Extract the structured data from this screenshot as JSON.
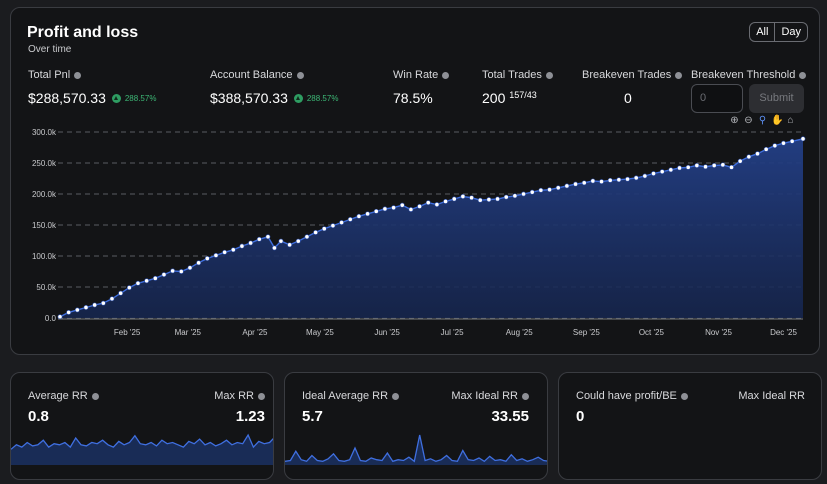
{
  "header": {
    "title": "Profit and loss",
    "subtitle": "Over time"
  },
  "range_toggle": {
    "all": "All",
    "day": "Day"
  },
  "stats": {
    "total_pnl": {
      "label": "Total Pnl",
      "value": "$288,570.33",
      "change": "288.57%"
    },
    "account_balance": {
      "label": "Account Balance",
      "value": "$388,570.33",
      "change": "288.57%"
    },
    "win_rate": {
      "label": "Win Rate",
      "value": "78.5%"
    },
    "total_trades": {
      "label": "Total Trades",
      "value": "200",
      "detail": "157/43"
    },
    "breakeven_trades": {
      "label": "Breakeven Trades",
      "value": "0"
    },
    "breakeven_threshold": {
      "label": "Breakeven Threshold",
      "placeholder": "0",
      "submit": "Submit"
    }
  },
  "toolbar_icons": [
    "zoom-in-icon",
    "zoom-out-icon",
    "magnify-icon",
    "pan-hand-icon",
    "home-icon"
  ],
  "colors": {
    "accent": "#5c8ef0",
    "positive": "#3db876",
    "area_fill": "#1e3570",
    "line": "#3f6fe0"
  },
  "chart_data": {
    "type": "area",
    "ylim": [
      0,
      300000
    ],
    "y_ticks": [
      "0.0",
      "50.0k",
      "100.0k",
      "150.0k",
      "200.0k",
      "250.0k",
      "300.0k"
    ],
    "y_tick_values": [
      0,
      50000,
      100000,
      150000,
      200000,
      250000,
      300000
    ],
    "x_ticks": [
      "Feb '25",
      "Mar '25",
      "Apr '25",
      "May '25",
      "Jun '25",
      "Jul '25",
      "Aug '25",
      "Sep '25",
      "Oct '25",
      "Nov '25",
      "Dec '25"
    ],
    "x_range": [
      "2025-01-01",
      "2025-12-10"
    ],
    "series": [
      {
        "points": [
          [
            "2025-01-01",
            2000
          ],
          [
            "2025-01-05",
            9000
          ],
          [
            "2025-01-09",
            13000
          ],
          [
            "2025-01-13",
            17000
          ],
          [
            "2025-01-17",
            21000
          ],
          [
            "2025-01-21",
            24000
          ],
          [
            "2025-01-25",
            31000
          ],
          [
            "2025-01-29",
            40000
          ],
          [
            "2025-02-02",
            49000
          ],
          [
            "2025-02-06",
            56000
          ],
          [
            "2025-02-10",
            60000
          ],
          [
            "2025-02-14",
            64000
          ],
          [
            "2025-02-18",
            70000
          ],
          [
            "2025-02-22",
            76000
          ],
          [
            "2025-02-26",
            75000
          ],
          [
            "2025-03-02",
            81000
          ],
          [
            "2025-03-06",
            89000
          ],
          [
            "2025-03-10",
            96000
          ],
          [
            "2025-03-14",
            101000
          ],
          [
            "2025-03-18",
            106000
          ],
          [
            "2025-03-22",
            110000
          ],
          [
            "2025-03-26",
            116000
          ],
          [
            "2025-03-30",
            121000
          ],
          [
            "2025-04-03",
            127000
          ],
          [
            "2025-04-07",
            131000
          ],
          [
            "2025-04-10",
            113000
          ],
          [
            "2025-04-13",
            124000
          ],
          [
            "2025-04-17",
            118000
          ],
          [
            "2025-04-21",
            124000
          ],
          [
            "2025-04-25",
            131000
          ],
          [
            "2025-04-29",
            138000
          ],
          [
            "2025-05-03",
            144000
          ],
          [
            "2025-05-07",
            149000
          ],
          [
            "2025-05-11",
            154000
          ],
          [
            "2025-05-15",
            159000
          ],
          [
            "2025-05-19",
            164000
          ],
          [
            "2025-05-23",
            168000
          ],
          [
            "2025-05-27",
            172000
          ],
          [
            "2025-05-31",
            176000
          ],
          [
            "2025-06-04",
            178000
          ],
          [
            "2025-06-08",
            182000
          ],
          [
            "2025-06-12",
            175000
          ],
          [
            "2025-06-16",
            180000
          ],
          [
            "2025-06-20",
            186000
          ],
          [
            "2025-06-24",
            183000
          ],
          [
            "2025-06-28",
            188000
          ],
          [
            "2025-07-02",
            192000
          ],
          [
            "2025-07-06",
            196000
          ],
          [
            "2025-07-10",
            194000
          ],
          [
            "2025-07-14",
            190000
          ],
          [
            "2025-07-18",
            191000
          ],
          [
            "2025-07-22",
            192000
          ],
          [
            "2025-07-26",
            195000
          ],
          [
            "2025-07-30",
            197000
          ],
          [
            "2025-08-03",
            200000
          ],
          [
            "2025-08-07",
            203000
          ],
          [
            "2025-08-11",
            206000
          ],
          [
            "2025-08-15",
            207000
          ],
          [
            "2025-08-19",
            210000
          ],
          [
            "2025-08-23",
            213000
          ],
          [
            "2025-08-27",
            216000
          ],
          [
            "2025-08-31",
            218000
          ],
          [
            "2025-09-04",
            221000
          ],
          [
            "2025-09-08",
            220000
          ],
          [
            "2025-09-12",
            222000
          ],
          [
            "2025-09-16",
            223000
          ],
          [
            "2025-09-20",
            224000
          ],
          [
            "2025-09-24",
            226000
          ],
          [
            "2025-09-28",
            229000
          ],
          [
            "2025-10-02",
            233000
          ],
          [
            "2025-10-06",
            236000
          ],
          [
            "2025-10-10",
            239000
          ],
          [
            "2025-10-14",
            242000
          ],
          [
            "2025-10-18",
            243000
          ],
          [
            "2025-10-22",
            246000
          ],
          [
            "2025-10-26",
            244000
          ],
          [
            "2025-10-30",
            246000
          ],
          [
            "2025-11-03",
            247000
          ],
          [
            "2025-11-07",
            243000
          ],
          [
            "2025-11-11",
            253000
          ],
          [
            "2025-11-15",
            260000
          ],
          [
            "2025-11-19",
            265000
          ],
          [
            "2025-11-23",
            272000
          ],
          [
            "2025-11-27",
            278000
          ],
          [
            "2025-12-01",
            282000
          ],
          [
            "2025-12-05",
            285000
          ],
          [
            "2025-12-10",
            289000
          ]
        ]
      }
    ]
  },
  "cards": [
    {
      "left_label": "Average RR",
      "left_value": "0.8",
      "right_label": "Max RR",
      "right_value": "1.23",
      "spark": [
        0.6,
        0.8,
        0.7,
        0.9,
        0.75,
        0.8,
        1.0,
        0.7,
        0.85,
        0.8,
        0.9,
        0.7,
        1.1,
        0.8,
        0.75,
        0.9,
        0.85,
        1.0,
        0.8,
        0.7,
        0.95,
        0.8,
        0.9,
        1.2,
        0.85,
        0.8,
        0.9,
        0.75,
        1.0,
        0.85,
        0.9,
        0.8,
        0.7,
        0.95,
        0.85,
        1.05,
        0.8,
        0.9,
        0.75,
        0.85,
        1.0,
        0.8,
        0.9,
        0.85,
        1.23,
        0.7,
        0.95,
        0.85,
        0.9,
        1.15
      ]
    },
    {
      "left_label": "Ideal Average RR",
      "left_value": "5.7",
      "right_label": "Max Ideal RR",
      "right_value": "33.55",
      "spark": [
        2,
        3,
        14,
        4,
        2,
        9,
        3,
        2,
        5,
        11,
        3,
        2,
        4,
        18,
        3,
        2,
        6,
        4,
        3,
        12,
        2,
        4,
        3,
        7,
        2,
        33.55,
        3,
        5,
        2,
        4,
        9,
        3,
        2,
        15,
        4,
        3,
        6,
        2,
        8,
        3,
        4,
        2,
        10,
        3,
        5,
        2,
        4,
        7,
        3,
        2
      ]
    },
    {
      "left_label": "Could have profit/BE",
      "left_value": "0",
      "right_label": "Max Ideal RR",
      "right_value": ""
    }
  ]
}
